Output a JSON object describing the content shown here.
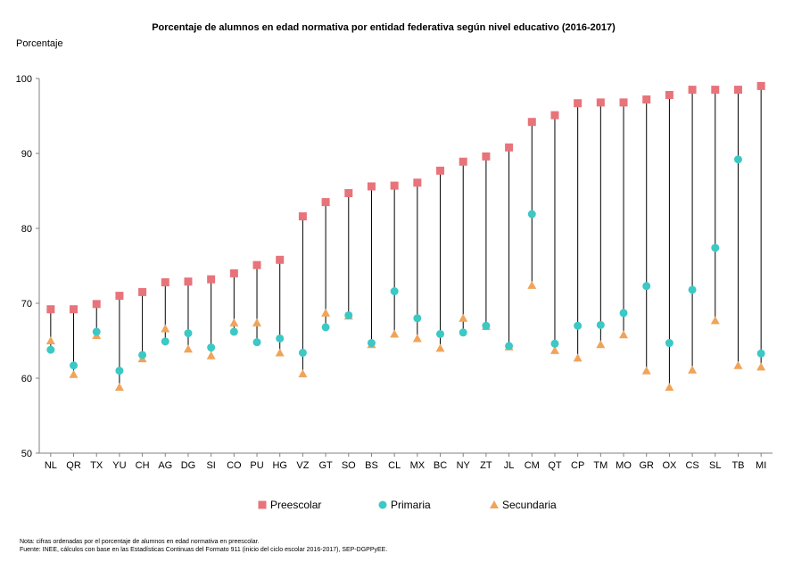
{
  "chart_data": {
    "type": "scatter",
    "title": "Porcentaje de alumnos en edad normativa por entidad federativa según nivel educativo (2016-2017)",
    "ylabel": "Porcentaje",
    "xlabel": "",
    "ylim": [
      50,
      100
    ],
    "yticks": [
      50,
      60,
      70,
      80,
      90,
      100
    ],
    "grid": false,
    "legend_position": "bottom",
    "categories": [
      "NL",
      "QR",
      "TX",
      "YU",
      "CH",
      "AG",
      "DG",
      "SI",
      "CO",
      "PU",
      "HG",
      "VZ",
      "GT",
      "SO",
      "BS",
      "CL",
      "MX",
      "BC",
      "NY",
      "ZT",
      "JL",
      "CM",
      "QT",
      "CP",
      "TM",
      "MO",
      "GR",
      "OX",
      "CS",
      "SL",
      "TB",
      "MI"
    ],
    "series": [
      {
        "name": "Preescolar",
        "marker": "square",
        "color": "#E8737A",
        "values": [
          69.2,
          69.2,
          69.9,
          71.0,
          71.5,
          72.8,
          72.9,
          73.2,
          74.0,
          75.1,
          75.8,
          81.6,
          83.5,
          84.7,
          85.6,
          85.7,
          86.1,
          87.7,
          88.9,
          89.6,
          90.8,
          94.2,
          95.1,
          96.7,
          96.8,
          96.8,
          97.2,
          97.8,
          98.5,
          98.5,
          98.5,
          99.0
        ]
      },
      {
        "name": "Primaria",
        "marker": "circle",
        "color": "#3CC8C4",
        "values": [
          63.8,
          61.7,
          66.2,
          61.0,
          63.1,
          64.9,
          66.0,
          64.1,
          66.2,
          64.8,
          65.3,
          63.4,
          66.8,
          68.4,
          64.7,
          71.6,
          68.0,
          65.9,
          66.1,
          67.0,
          64.3,
          81.9,
          64.6,
          67.0,
          67.1,
          68.7,
          72.3,
          64.7,
          71.8,
          77.4,
          89.2,
          63.3
        ]
      },
      {
        "name": "Secundaria",
        "marker": "triangle",
        "color": "#F0A45A",
        "values": [
          65.0,
          60.5,
          65.7,
          58.8,
          62.6,
          66.6,
          63.9,
          63.0,
          67.4,
          67.4,
          63.4,
          60.6,
          68.7,
          68.3,
          64.5,
          65.9,
          65.3,
          64.0,
          68.0,
          66.9,
          64.2,
          72.4,
          63.7,
          62.7,
          64.5,
          65.8,
          61.0,
          58.8,
          61.1,
          67.7,
          61.7,
          61.5
        ]
      }
    ]
  },
  "notes": {
    "line1": "Nota: cifras ordenadas  por el porcentaje de alumnos en edad normativa en preescolar.",
    "line2": "Fuente:  INEE, cálculos con base en las Estadísticas Continuas del Formato 911 (inicio del ciclo escolar 2016-2017),  SEP-DGPPyEE."
  }
}
